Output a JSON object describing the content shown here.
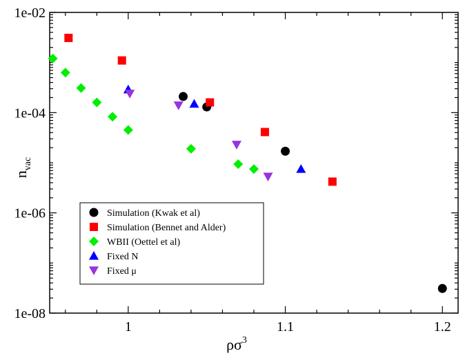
{
  "chart_data": {
    "type": "scatter",
    "title": "",
    "xlabel": "ρσ",
    "xlabel_superscript": "3",
    "ylabel": "n",
    "ylabel_subscript": "vac",
    "xlim": [
      0.95,
      1.21
    ],
    "ylim": [
      1e-08,
      0.01
    ],
    "y_scale": "log",
    "x_ticks": [
      1,
      1.1,
      1.2
    ],
    "x_tick_labels": [
      "1",
      "1.1",
      "1.2"
    ],
    "y_ticks": [
      1e-08,
      1e-06,
      0.0001,
      0.01
    ],
    "y_tick_labels": [
      "1e-08",
      "1e-06",
      "1e-04",
      "1e-02"
    ],
    "grid": false,
    "legend_position": "lower-left",
    "series": [
      {
        "name": "Simulation (Kwak et al)",
        "marker": "circle",
        "color": "#000000",
        "points": [
          [
            1.035,
            0.00021
          ],
          [
            1.05,
            0.00013
          ],
          [
            1.1,
            1.7e-05
          ],
          [
            1.2,
            3.1e-08
          ]
        ]
      },
      {
        "name": "Simulation (Bennet and Alder)",
        "marker": "square",
        "color": "#ff0000",
        "points": [
          [
            0.962,
            0.0031
          ],
          [
            0.996,
            0.0011
          ],
          [
            1.052,
            0.00016
          ],
          [
            1.087,
            4.1e-05
          ],
          [
            1.13,
            4.2e-06
          ]
        ]
      },
      {
        "name": "WBII (Oettel et al)",
        "marker": "diamond",
        "color": "#00ee00",
        "points": [
          [
            0.952,
            0.0012
          ],
          [
            0.96,
            0.00063
          ],
          [
            0.97,
            0.00031
          ],
          [
            0.98,
            0.00016
          ],
          [
            0.99,
            8.3e-05
          ],
          [
            1.0,
            4.5e-05
          ],
          [
            1.04,
            1.9e-05
          ],
          [
            1.07,
            9.4e-06
          ],
          [
            1.08,
            7.5e-06
          ]
        ]
      },
      {
        "name": "Fixed N",
        "marker": "triangle-up",
        "color": "#0000ff",
        "points": [
          [
            1.0,
            0.00029
          ],
          [
            1.042,
            0.00015
          ],
          [
            1.11,
            7.5e-06
          ]
        ]
      },
      {
        "name": "Fixed μ",
        "marker": "triangle-down",
        "color": "#9933dd",
        "points": [
          [
            1.001,
            0.00024
          ],
          [
            1.032,
            0.00014
          ],
          [
            1.069,
            2.3e-05
          ],
          [
            1.089,
            5.3e-06
          ]
        ]
      }
    ]
  }
}
